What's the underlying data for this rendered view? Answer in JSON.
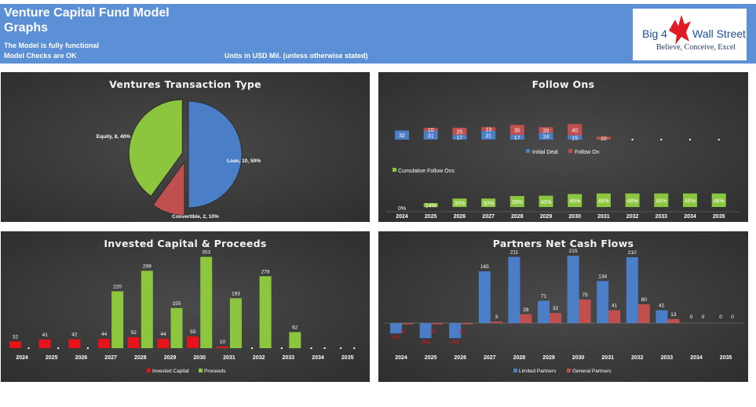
{
  "header": {
    "title_line1": "Venture Capital Fund Model",
    "title_line2": "Graphs",
    "status1": "The Model is fully functional",
    "status2": "Model Checks are OK",
    "units": "Units in USD Mil. (unless otherwise stated)",
    "header_color": "#5b8fd6"
  },
  "logo": {
    "part1": "Big 4",
    "part2": "Wall Street",
    "tagline": "Believe, Conceive, Excel",
    "icon": "eagle-icon"
  },
  "colors": {
    "blue": "#4a7fc8",
    "red": "#c0504d",
    "green": "#8cc63f",
    "bright_red": "#e8121b",
    "panel_bg": "#333333"
  },
  "charts": {
    "transaction_type": {
      "type": "pie",
      "title": "Ventures Transaction Type",
      "slices": [
        {
          "name": "Loan",
          "value": 10,
          "pct": "50%",
          "label": "Loan, 10, 50%",
          "color": "#4a7fc8"
        },
        {
          "name": "Convertible",
          "value": 2,
          "pct": "10%",
          "label": "Convertible, 2, 10%",
          "color": "#c0504d"
        },
        {
          "name": "Equity",
          "value": 8,
          "pct": "40%",
          "label": "Equity, 8, 40%",
          "color": "#8cc63f"
        }
      ]
    },
    "follow_ons": {
      "type": "bar",
      "title": "Follow Ons",
      "categories": [
        "2024",
        "2025",
        "2026",
        "2027",
        "2028",
        "2029",
        "2030",
        "2031",
        "2032",
        "2033",
        "2034",
        "2035"
      ],
      "series": [
        {
          "name": "Initial Deal",
          "values": [
            32,
            31,
            17,
            31,
            17,
            24,
            15,
            0,
            0,
            0,
            0,
            0
          ],
          "color": "#4a7fc8"
        },
        {
          "name": "Follow On",
          "values": [
            0,
            10,
            25,
            13,
            35,
            20,
            40,
            10,
            0,
            0,
            0,
            0
          ],
          "color": "#c0504d"
        }
      ],
      "cumulative": {
        "name": "Cumulative Follow Ons",
        "labels": [
          "0%",
          "14%",
          "30%",
          "30%",
          "39%",
          "40%",
          "46%",
          "48%",
          "48%",
          "48%",
          "48%",
          "48%"
        ],
        "values": [
          0,
          14,
          30,
          30,
          39,
          40,
          46,
          48,
          48,
          48,
          48,
          48
        ],
        "color": "#8cc63f"
      }
    },
    "invested_capital": {
      "type": "bar",
      "title": "Invested Capital & Proceeds",
      "categories": [
        "2024",
        "2025",
        "2026",
        "2027",
        "2028",
        "2029",
        "2030",
        "2031",
        "2032",
        "2033",
        "2034",
        "2035"
      ],
      "series": [
        {
          "name": "Invested Capital",
          "values": [
            32,
            41,
            42,
            44,
            52,
            44,
            55,
            10,
            0,
            0,
            0,
            0
          ],
          "color": "#e8121b"
        },
        {
          "name": "Proceeds",
          "values": [
            0,
            0,
            0,
            220,
            299,
            155,
            353,
            193,
            278,
            62,
            0,
            0
          ],
          "color": "#8cc63f"
        }
      ]
    },
    "net_cash_flows": {
      "type": "bar",
      "title": "Partners Net Cash Flows",
      "categories": [
        "2024",
        "2025",
        "2026",
        "2027",
        "2028",
        "2029",
        "2030",
        "2031",
        "2032",
        "2033",
        "2034",
        "2035"
      ],
      "series": [
        {
          "name": "Limited Partners",
          "values": [
            -33,
            -48,
            -48,
            165,
            211,
            71,
            215,
            134,
            210,
            41,
            0,
            0
          ],
          "labels": [
            "(33)",
            "(48)",
            "(48)",
            "165",
            "211",
            "71",
            "215",
            "134",
            "210",
            "41",
            "0",
            "0"
          ],
          "color": "#4a7fc8"
        },
        {
          "name": "General Partners",
          "values": [
            -1,
            -1,
            -1,
            3,
            28,
            32,
            75,
            41,
            60,
            13,
            0,
            0
          ],
          "labels": [
            "(1)",
            "(1)",
            "(1)",
            "3",
            "28",
            "32",
            "75",
            "41",
            "60",
            "13",
            "0",
            "0"
          ],
          "color": "#c0504d"
        }
      ]
    }
  }
}
